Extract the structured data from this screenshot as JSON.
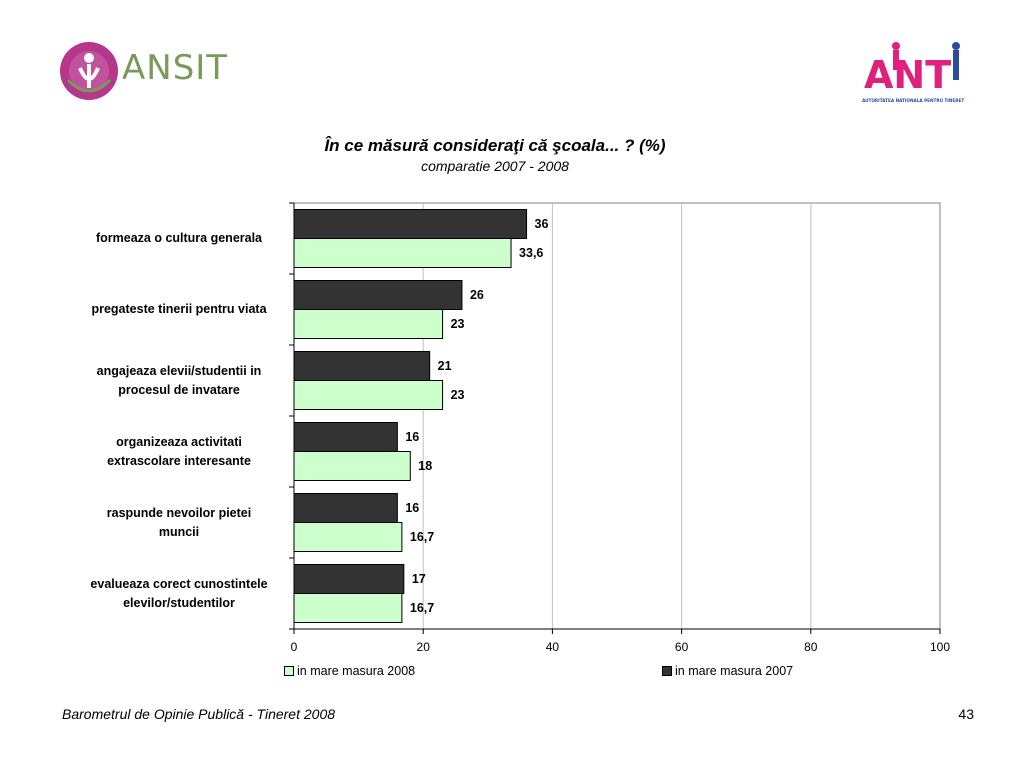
{
  "header": {
    "left_logo_text": "ANSIT",
    "right_logo_text": "ANT",
    "right_logo_caption": "AUTORITATEA NATIONALA PENTRU TINERET"
  },
  "footer": {
    "source": "Barometrul de Opinie Publică - Tineret 2008",
    "page_number": "43"
  },
  "colors": {
    "series_2008": "#ccffcc",
    "series_2007": "#333333",
    "grid": "#c0c0c0",
    "left_logo_primary": "#b5368b",
    "left_logo_text": "#7a9a5a",
    "right_logo_pink": "#e0217c",
    "right_logo_blue": "#2b4d9a"
  },
  "chart_data": {
    "type": "bar",
    "orientation": "horizontal",
    "title": "În ce măsură consideraţi că şcoala... ? (%)",
    "subtitle": "comparatie 2007 - 2008",
    "categories": [
      "formeaza o cultura generala",
      "pregateste tinerii pentru viata",
      "angajeaza elevii/studentii in procesul de invatare",
      "organizeaza activitati extrascolare interesante",
      "raspunde nevoilor pietei muncii",
      "evalueaza corect cunostintele elevilor/studentilor"
    ],
    "category_display": [
      [
        "formeaza o cultura generala"
      ],
      [
        "pregateste tinerii pentru viata"
      ],
      [
        "angajeaza elevii/studentii in",
        "procesul de invatare"
      ],
      [
        "organizeaza activitati",
        "extrascolare interesante"
      ],
      [
        "raspunde nevoilor pietei",
        "muncii"
      ],
      [
        "evalueaza corect cunostintele",
        "elevilor/studentilor"
      ]
    ],
    "series": [
      {
        "name": "in mare masura 2007",
        "color": "#333333",
        "values": [
          36,
          26,
          21,
          16,
          16,
          17
        ],
        "labels": [
          "36",
          "26",
          "21",
          "16",
          "16",
          "17"
        ]
      },
      {
        "name": "in mare masura 2008",
        "color": "#ccffcc",
        "values": [
          33.6,
          23,
          23,
          18,
          16.7,
          16.7
        ],
        "labels": [
          "33,6",
          "23",
          "23",
          "18",
          "16,7",
          "16,7"
        ]
      }
    ],
    "xlim": [
      0,
      100
    ],
    "xticks": [
      "0",
      "20",
      "40",
      "60",
      "80",
      "100"
    ],
    "grid": true,
    "legend": [
      {
        "name": "in mare masura 2008",
        "color": "#ccffcc"
      },
      {
        "name": "in mare masura 2007",
        "color": "#333333"
      }
    ],
    "legend_position": "bottom"
  }
}
